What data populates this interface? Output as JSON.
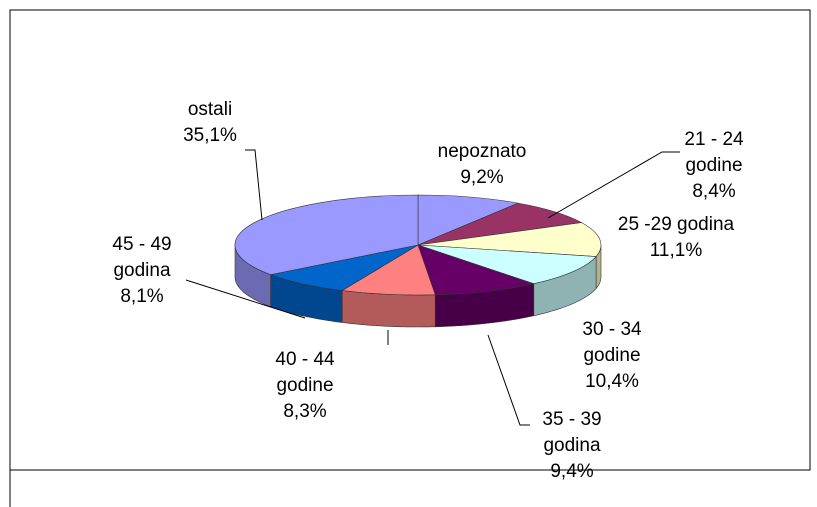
{
  "chart_data": {
    "type": "pie3d",
    "categories": [
      "nepoznato",
      "21 - 24 godine",
      "25 -29 godina",
      "30 - 34 godine",
      "35 - 39 godina",
      "40 - 44 godine",
      "45 - 49 godina",
      "ostali"
    ],
    "values": [
      9.2,
      8.4,
      11.1,
      10.4,
      9.4,
      8.3,
      8.1,
      35.1
    ],
    "value_labels": [
      "9,2%",
      "8,4%",
      "11,1%",
      "10,4%",
      "9,4%",
      "8,3%",
      "8,1%",
      "35,1%"
    ],
    "colors": [
      "#9999ff",
      "#993366",
      "#ffffcc",
      "#ccffff",
      "#660066",
      "#ff8080",
      "#0066cc",
      "#9999ff"
    ]
  }
}
